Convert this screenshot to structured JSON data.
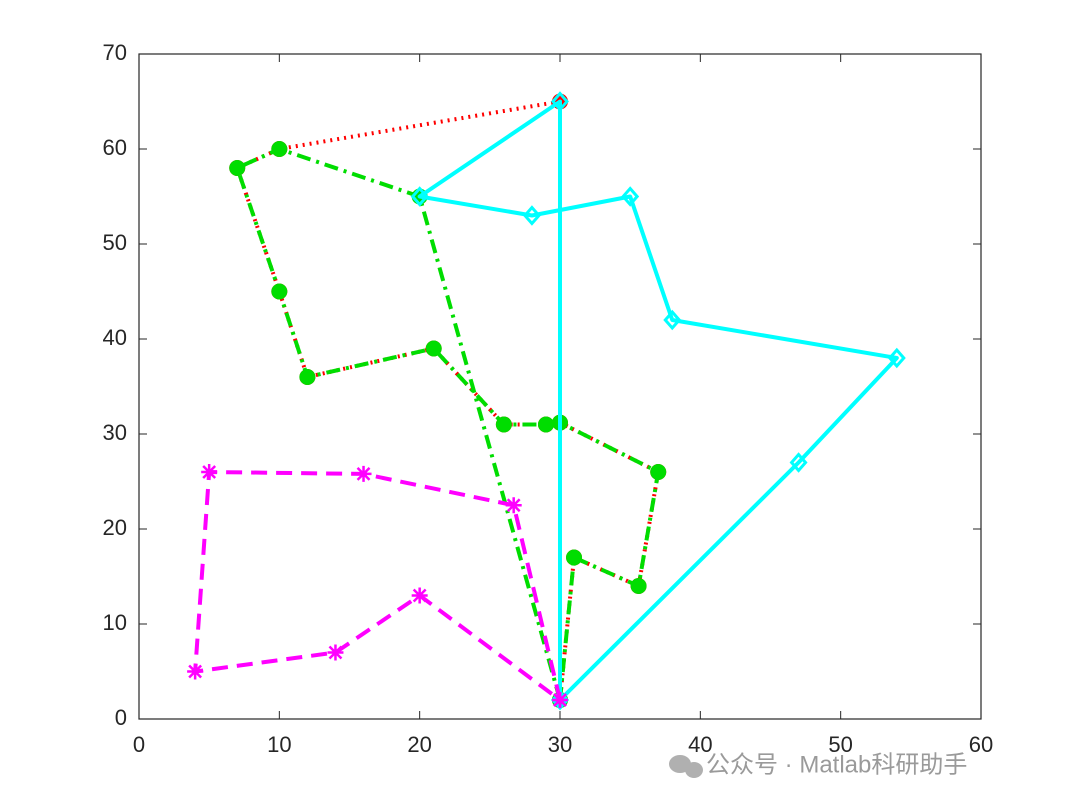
{
  "chart_data": {
    "type": "line",
    "xlim": [
      0,
      60
    ],
    "ylim": [
      0,
      70
    ],
    "xticks": [
      0,
      10,
      20,
      30,
      40,
      50,
      60
    ],
    "yticks": [
      0,
      10,
      20,
      30,
      40,
      50,
      60,
      70
    ],
    "box": true,
    "watermark": "公众号 · Matlab科研助手",
    "series": [
      {
        "color": "#ff0000",
        "line_style": "dotted",
        "marker": "circle",
        "marker_fill": "#ff0000",
        "x": [
          30,
          10,
          7,
          10,
          12,
          21,
          26,
          29,
          30,
          37,
          35.6,
          31,
          30
        ],
        "values": [
          65,
          60,
          58,
          45,
          36,
          39,
          31,
          31,
          31.2,
          26,
          14,
          17,
          2
        ]
      },
      {
        "color": "#00dd00",
        "line_style": "dashdot",
        "marker": "circle",
        "marker_fill": "#00dd00",
        "x": [
          30,
          20,
          10,
          7,
          10,
          12,
          21,
          26,
          29,
          30,
          37,
          35.6,
          31,
          30
        ],
        "values": [
          2,
          55,
          60,
          58,
          45,
          36,
          39,
          31,
          31,
          31.2,
          26,
          14,
          17,
          2
        ]
      },
      {
        "color": "#00ffff",
        "line_style": "solid",
        "marker": "diamond",
        "marker_fill": "none",
        "x": [
          30,
          30,
          20,
          28,
          35,
          38,
          54,
          47,
          30
        ],
        "values": [
          2,
          65,
          55,
          53,
          55,
          42,
          38,
          27,
          2
        ]
      },
      {
        "color": "#ff00ff",
        "line_style": "dashed",
        "marker": "asterisk",
        "marker_fill": "none",
        "x": [
          30,
          26.7,
          16,
          5,
          4,
          14,
          20,
          30
        ],
        "values": [
          2,
          22.5,
          25.8,
          26,
          5,
          7,
          13,
          2
        ]
      }
    ]
  }
}
